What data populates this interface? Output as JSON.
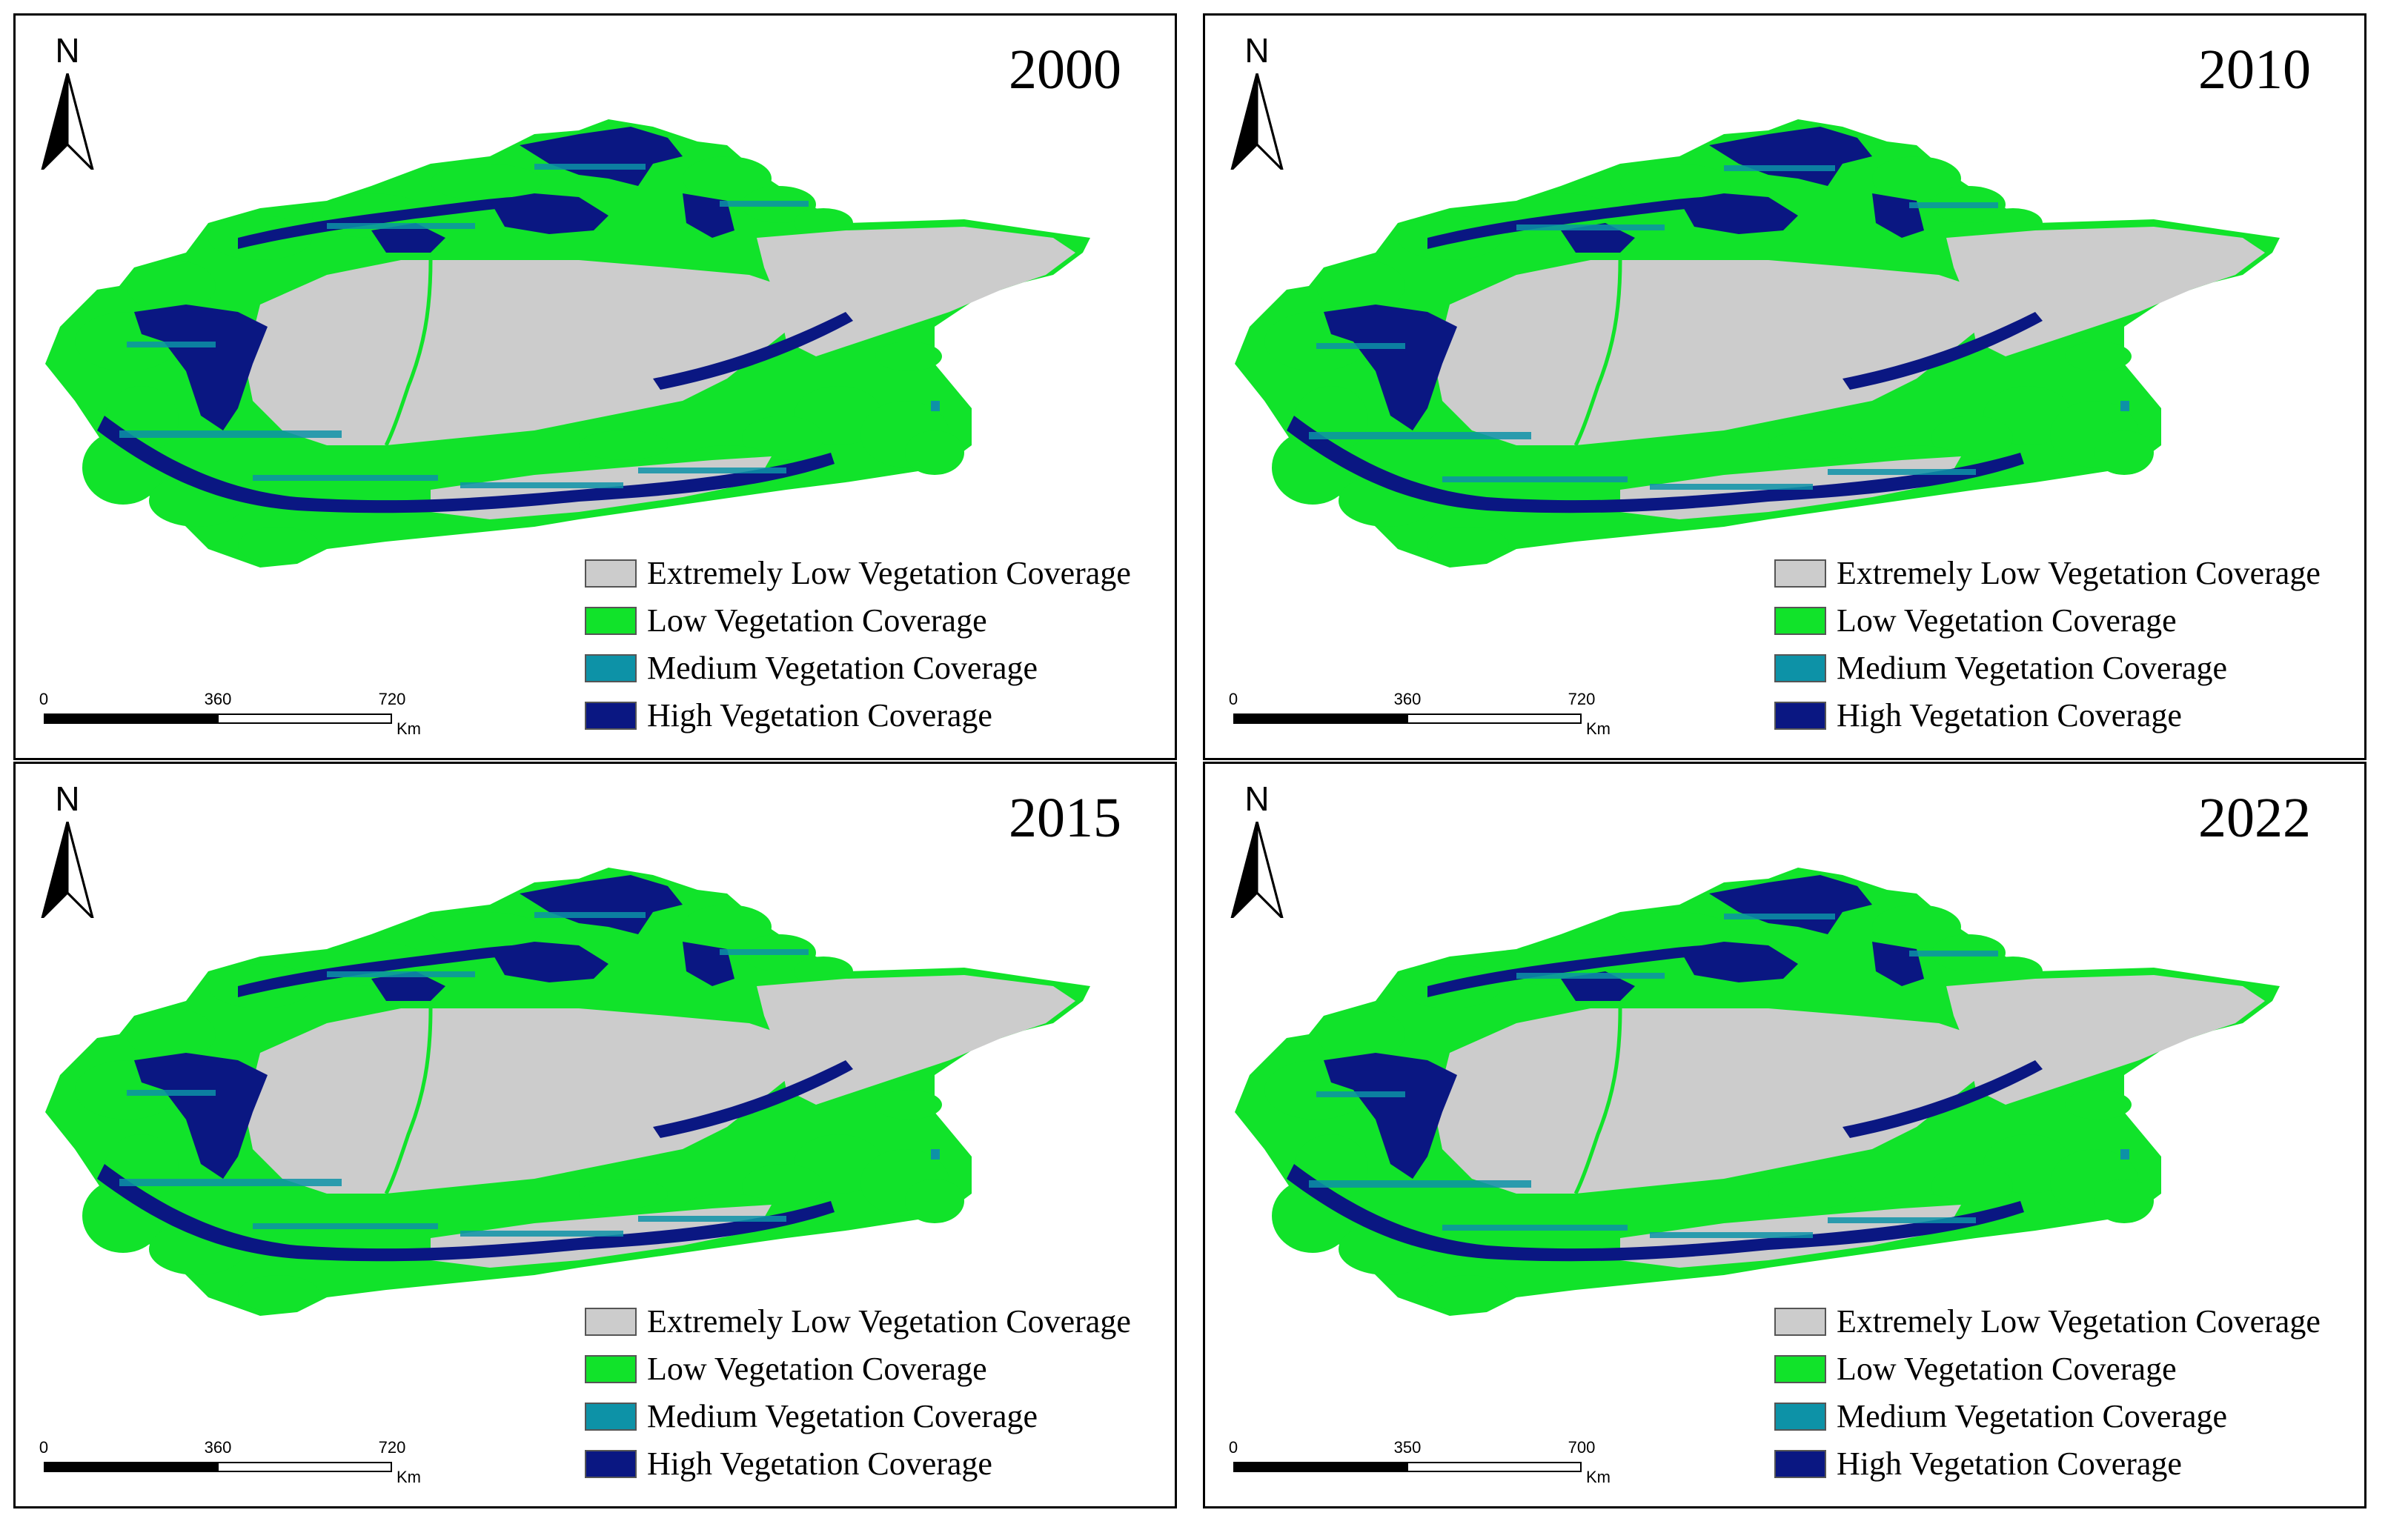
{
  "colors": {
    "extremely_low": "#cccccc",
    "low": "#11e32a",
    "medium": "#0d92a7",
    "high": "#0a1782"
  },
  "panels": [
    {
      "year": "2000",
      "north_label": "N",
      "scale": {
        "ticks": [
          "0",
          "360",
          "720"
        ],
        "unit": "Km"
      }
    },
    {
      "year": "2010",
      "north_label": "N",
      "scale": {
        "ticks": [
          "0",
          "360",
          "720"
        ],
        "unit": "Km"
      }
    },
    {
      "year": "2015",
      "north_label": "N",
      "scale": {
        "ticks": [
          "0",
          "360",
          "720"
        ],
        "unit": "Km"
      }
    },
    {
      "year": "2022",
      "north_label": "N",
      "scale": {
        "ticks": [
          "0",
          "350",
          "700"
        ],
        "unit": "Km"
      }
    }
  ],
  "legend": [
    {
      "label": "Extremely Low Vegetation Coverage",
      "color": "#cccccc"
    },
    {
      "label": "Low Vegetation Coverage",
      "color": "#11e32a"
    },
    {
      "label": "Medium Vegetation Coverage",
      "color": "#0d92a7"
    },
    {
      "label": "High Vegetation Coverage",
      "color": "#0a1782"
    }
  ]
}
